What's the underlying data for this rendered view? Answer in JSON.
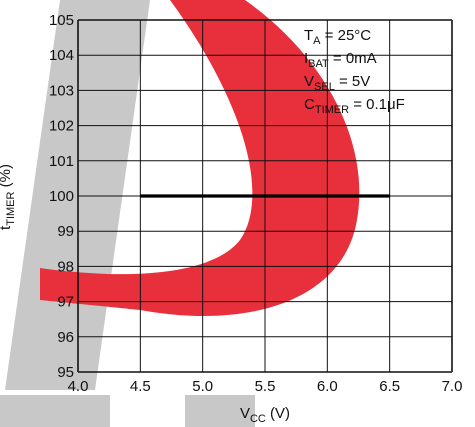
{
  "chart_data": {
    "type": "line",
    "xlabel": {
      "main": "V",
      "sub": "CC",
      "suffix": " (V)"
    },
    "ylabel": {
      "main": "t",
      "sub": "TIMER",
      "suffix": " (%)"
    },
    "xlim": [
      4.0,
      7.0
    ],
    "ylim": [
      95,
      105
    ],
    "x_ticks": [
      "4.0",
      "4.5",
      "5.0",
      "5.5",
      "6.0",
      "6.5",
      "7.0"
    ],
    "y_ticks": [
      "95",
      "96",
      "97",
      "98",
      "99",
      "100",
      "101",
      "102",
      "103",
      "104",
      "105"
    ],
    "grid": true,
    "series": [
      {
        "x": [
          4.5,
          5.0,
          5.5,
          6.0,
          6.5
        ],
        "y": [
          100,
          100,
          100,
          100,
          100
        ],
        "color": "#000000"
      }
    ],
    "annotations": [
      {
        "main": "T",
        "sub": "A",
        "rest": " = 25°C"
      },
      {
        "main": "I",
        "sub": "BAT",
        "rest": " = 0mA"
      },
      {
        "main": "V",
        "sub": "SEL",
        "rest": " = 5V"
      },
      {
        "main": "C",
        "sub": "TIMER",
        "rest": " = 0.1μF"
      }
    ],
    "annotation_placement": "top-right"
  },
  "colors": {
    "grid": "#111111",
    "background": "#ffffff",
    "watermark_gray": "#c8c8c8",
    "watermark_red": "#e8303c"
  },
  "watermark": "logo"
}
